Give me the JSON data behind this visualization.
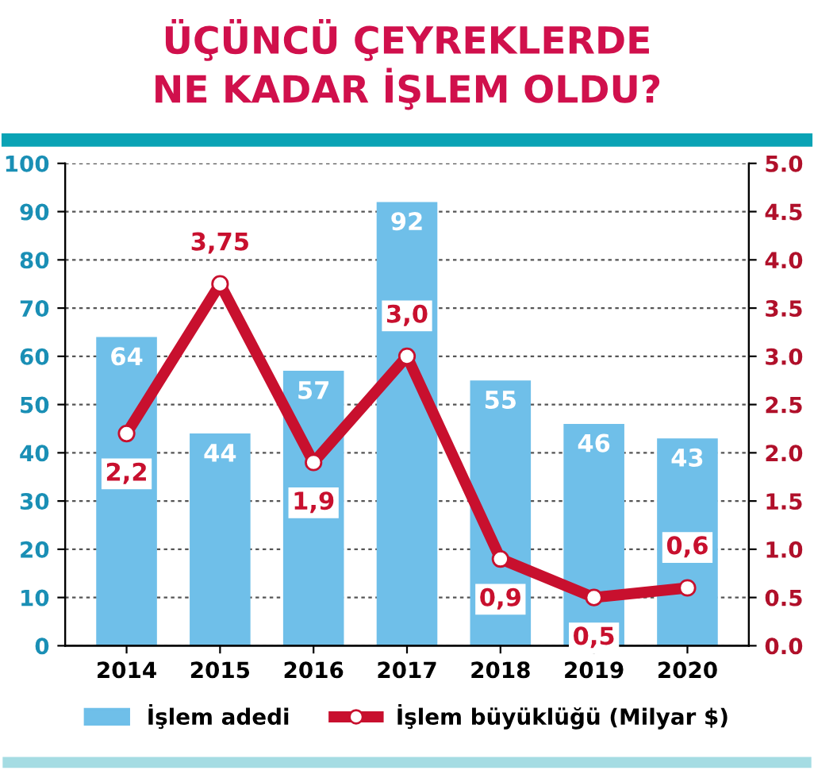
{
  "chart_data": {
    "type": "bar",
    "title": "ÜÇÜNCÜ ÇEYREKLERDE\nNE KADAR İŞLEM OLDU?",
    "categories": [
      "2014",
      "2015",
      "2016",
      "2017",
      "2018",
      "2019",
      "2020"
    ],
    "series": [
      {
        "name": "İşlem adedi",
        "color": "#6fbfe9",
        "values": [
          64,
          44,
          57,
          92,
          55,
          46,
          43
        ],
        "value_labels": [
          "64",
          "44",
          "57",
          "92",
          "55",
          "46",
          "43"
        ]
      },
      {
        "name": "İşlem büyüklüğü (Milyar $)",
        "type": "line",
        "axis": "y2",
        "color": "#c8102e",
        "marker": "circle",
        "line_style": "solid",
        "values": [
          2.2,
          3.75,
          1.9,
          3.0,
          0.9,
          0.5,
          0.6
        ],
        "value_labels": [
          "2,2",
          "3,75",
          "1,9",
          "3,0",
          "0,9",
          "0,5",
          "0,6"
        ]
      }
    ],
    "ylim": [
      0,
      100
    ],
    "yticks": [
      0,
      10,
      20,
      30,
      40,
      50,
      60,
      70,
      80,
      90,
      100
    ],
    "y2lim": [
      0,
      5
    ],
    "y2ticks": [
      {
        "value": 0,
        "label": "0.0"
      },
      {
        "value": 0.5,
        "label": "0.5"
      },
      {
        "value": 1,
        "label": "1.0"
      },
      {
        "value": 1.5,
        "label": "1.5"
      },
      {
        "value": 2,
        "label": "2.0"
      },
      {
        "value": 2.5,
        "label": "2.5"
      },
      {
        "value": 3,
        "label": "3.0"
      },
      {
        "value": 3.5,
        "label": "3.5"
      },
      {
        "value": 4,
        "label": "4.0"
      },
      {
        "value": 4.5,
        "label": "4.5"
      },
      {
        "value": 5,
        "label": "5.0"
      }
    ],
    "grid": "y",
    "legend": "bottom"
  }
}
